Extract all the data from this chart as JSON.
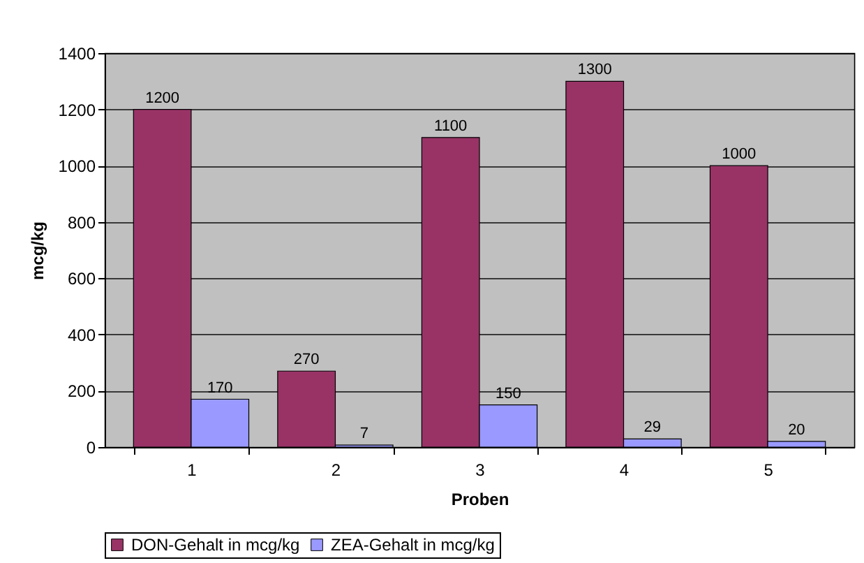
{
  "chart_data": {
    "type": "bar",
    "xlabel": "Proben",
    "ylabel": "mcg/kg",
    "categories": [
      "1",
      "2",
      "3",
      "4",
      "5"
    ],
    "series": [
      {
        "name": "DON-Gehalt in mcg/kg",
        "color": "#993366",
        "values": [
          1200,
          270,
          1100,
          1300,
          1000
        ]
      },
      {
        "name": "ZEA-Gehalt in mcg/kg",
        "color": "#9999ff",
        "values": [
          170,
          7,
          150,
          29,
          20
        ]
      }
    ],
    "ylim": [
      0,
      1400
    ],
    "yticks": [
      0,
      200,
      400,
      600,
      800,
      1000,
      1200,
      1400
    ],
    "grid": "y",
    "legend": "bottom",
    "data_labels": true
  }
}
